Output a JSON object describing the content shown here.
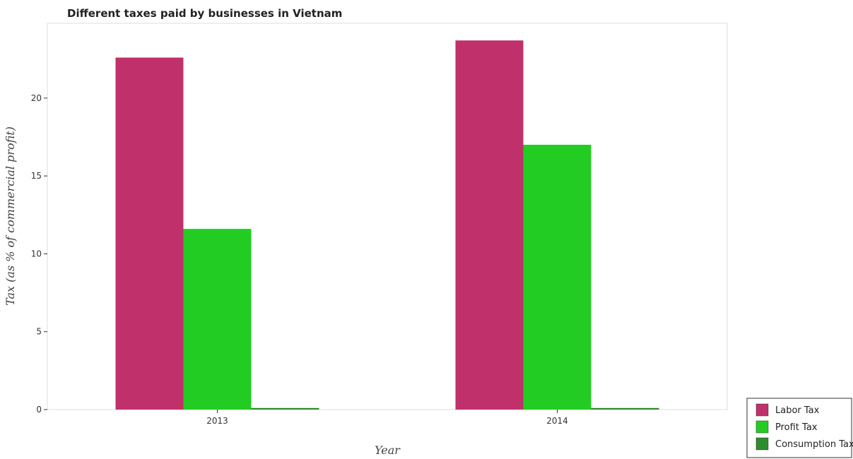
{
  "chart_data": {
    "type": "bar",
    "title": "Different taxes paid by businesses in Vietnam",
    "xlabel": "Year",
    "ylabel": "Tax (as % of commercial profit)",
    "categories": [
      "2013",
      "2014"
    ],
    "series": [
      {
        "name": "Labor Tax",
        "color": "#c0306a",
        "values": [
          22.6,
          23.7
        ]
      },
      {
        "name": "Profit Tax",
        "color": "#22cc22",
        "values": [
          11.6,
          17.0
        ]
      },
      {
        "name": "Consumption Tax",
        "color": "#2e8b2e",
        "values": [
          0.1,
          0.1
        ]
      }
    ],
    "ylim": [
      0,
      24.8
    ],
    "yticks": [
      0,
      5,
      10,
      15,
      20
    ],
    "ytick_labels": [
      "0",
      "5",
      "10",
      "15",
      "20"
    ],
    "grid": false,
    "legend_position": "bottom-right"
  }
}
